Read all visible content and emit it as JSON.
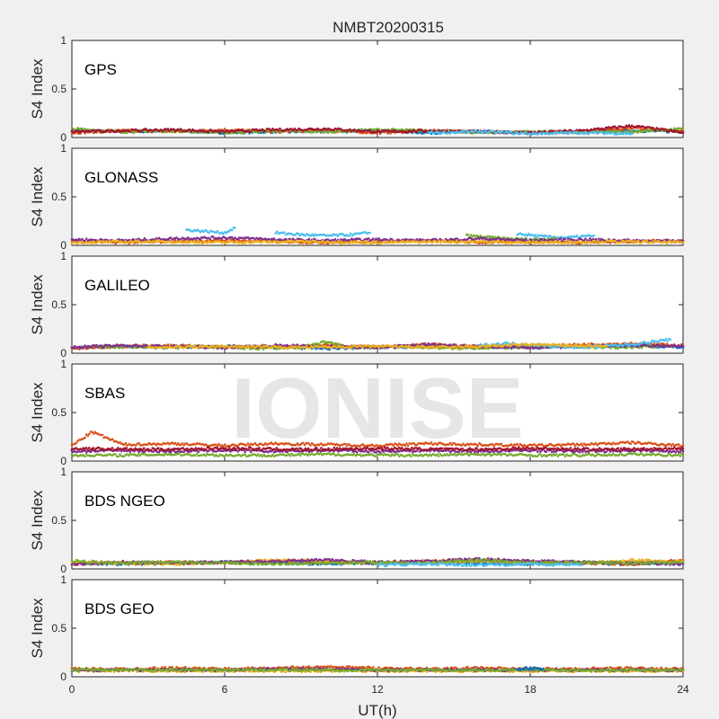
{
  "chart_data": {
    "type": "scatter",
    "title": "NMBT20200315",
    "xlabel": "UT(h)",
    "ylabel": "S4 Index",
    "xlim": [
      0,
      24
    ],
    "ylim": [
      0,
      1
    ],
    "xticks": [
      "0",
      "6",
      "12",
      "18",
      "24"
    ],
    "yticks": [
      "0",
      "0.5",
      "1"
    ],
    "grid": false,
    "watermark": "IONISE",
    "colors": [
      "#0072BD",
      "#D95319",
      "#EDB120",
      "#7E2F8E",
      "#77AC30",
      "#4DBEEE",
      "#A2142F"
    ],
    "panels": [
      {
        "name": "GPS",
        "series": [
          {
            "color": "#0072BD",
            "x": [
              0,
              2,
              4,
              6,
              8,
              10,
              12,
              14,
              16,
              18,
              20,
              22,
              24
            ],
            "y": [
              0.07,
              0.06,
              0.07,
              0.05,
              0.06,
              0.06,
              0.07,
              0.05,
              0.06,
              0.05,
              0.06,
              0.07,
              0.06
            ]
          },
          {
            "color": "#D95319",
            "x": [
              0,
              2,
              4,
              6,
              8,
              10,
              12,
              14,
              16,
              18,
              20,
              22,
              24
            ],
            "y": [
              0.05,
              0.07,
              0.06,
              0.08,
              0.06,
              0.07,
              0.05,
              0.07,
              0.06,
              0.05,
              0.06,
              0.1,
              0.06
            ]
          },
          {
            "color": "#77AC30",
            "x": [
              0,
              2,
              4,
              6,
              8,
              10,
              12,
              14,
              16,
              18,
              20,
              22,
              24
            ],
            "y": [
              0.09,
              0.06,
              0.07,
              0.05,
              0.07,
              0.06,
              0.08,
              0.07,
              0.05,
              0.06,
              0.05,
              0.06,
              0.09
            ]
          },
          {
            "color": "#A2142F",
            "x": [
              0,
              2,
              4,
              6,
              8,
              10,
              12,
              14,
              16,
              18,
              20,
              22,
              24
            ],
            "y": [
              0.06,
              0.07,
              0.08,
              0.06,
              0.08,
              0.09,
              0.06,
              0.07,
              0.06,
              0.05,
              0.07,
              0.12,
              0.05
            ]
          },
          {
            "color": "#4DBEEE",
            "x": [
              14,
              16,
              18,
              20,
              22
            ],
            "y": [
              0.05,
              0.06,
              0.04,
              0.05,
              0.04
            ]
          }
        ]
      },
      {
        "name": "GLONASS",
        "series": [
          {
            "color": "#D95319",
            "x": [
              0,
              2,
              4,
              6,
              8,
              10,
              12,
              14,
              16,
              18,
              20,
              22,
              24
            ],
            "y": [
              0.04,
              0.03,
              0.04,
              0.05,
              0.04,
              0.03,
              0.04,
              0.05,
              0.03,
              0.04,
              0.03,
              0.04,
              0.05
            ]
          },
          {
            "color": "#4DBEEE",
            "x": [
              4.5,
              5,
              5.5,
              6,
              6.4
            ],
            "y": [
              0.16,
              0.15,
              0.14,
              0.13,
              0.18
            ]
          },
          {
            "color": "#4DBEEE",
            "x": [
              8,
              9,
              10,
              11,
              11.7
            ],
            "y": [
              0.13,
              0.11,
              0.1,
              0.11,
              0.13
            ]
          },
          {
            "color": "#4DBEEE",
            "x": [
              17.5,
              18.5,
              19.5,
              20.5
            ],
            "y": [
              0.12,
              0.09,
              0.08,
              0.1
            ]
          },
          {
            "color": "#77AC30",
            "x": [
              15.5,
              16,
              17,
              18,
              19
            ],
            "y": [
              0.1,
              0.09,
              0.07,
              0.06,
              0.07
            ]
          },
          {
            "color": "#7E2F8E",
            "x": [
              0,
              2,
              4,
              6,
              8,
              10,
              12,
              14,
              16,
              18,
              20,
              22,
              24
            ],
            "y": [
              0.06,
              0.05,
              0.07,
              0.08,
              0.06,
              0.05,
              0.06,
              0.05,
              0.07,
              0.05,
              0.06,
              0.05,
              0.04
            ]
          },
          {
            "color": "#EDB120",
            "x": [
              0,
              3,
              6,
              9,
              12,
              15,
              18,
              21,
              24
            ],
            "y": [
              0.03,
              0.04,
              0.03,
              0.04,
              0.03,
              0.04,
              0.03,
              0.04,
              0.03
            ]
          }
        ]
      },
      {
        "name": "GALILEO",
        "series": [
          {
            "color": "#0072BD",
            "x": [
              0,
              2,
              4,
              6,
              8,
              10,
              12,
              14,
              16,
              18,
              20,
              22,
              24
            ],
            "y": [
              0.06,
              0.07,
              0.06,
              0.07,
              0.06,
              0.05,
              0.06,
              0.07,
              0.06,
              0.06,
              0.07,
              0.08,
              0.06
            ]
          },
          {
            "color": "#D95319",
            "x": [
              0,
              2,
              4,
              6,
              8,
              10,
              12,
              14,
              16,
              18,
              20,
              22,
              24
            ],
            "y": [
              0.05,
              0.07,
              0.08,
              0.06,
              0.07,
              0.08,
              0.06,
              0.09,
              0.07,
              0.06,
              0.09,
              0.1,
              0.08
            ]
          },
          {
            "color": "#77AC30",
            "x": [
              1,
              3,
              5,
              7,
              9,
              10,
              11,
              13,
              15,
              17,
              19,
              21,
              23
            ],
            "y": [
              0.07,
              0.06,
              0.07,
              0.05,
              0.06,
              0.12,
              0.06,
              0.07,
              0.05,
              0.06,
              0.07,
              0.06,
              0.07
            ]
          },
          {
            "color": "#7E2F8E",
            "x": [
              0,
              2,
              4,
              6,
              8,
              10,
              12,
              14,
              16,
              18,
              20,
              22,
              24
            ],
            "y": [
              0.06,
              0.08,
              0.07,
              0.06,
              0.08,
              0.07,
              0.06,
              0.09,
              0.07,
              0.06,
              0.07,
              0.08,
              0.07
            ]
          },
          {
            "color": "#4DBEEE",
            "x": [
              16,
              17,
              18,
              19,
              20,
              22,
              23.5
            ],
            "y": [
              0.08,
              0.1,
              0.09,
              0.07,
              0.06,
              0.09,
              0.14
            ]
          },
          {
            "color": "#EDB120",
            "x": [
              3,
              6,
              9,
              12,
              15,
              18,
              21
            ],
            "y": [
              0.06,
              0.07,
              0.06,
              0.07,
              0.06,
              0.09,
              0.07
            ]
          }
        ]
      },
      {
        "name": "SBAS",
        "series": [
          {
            "color": "#D95319",
            "x": [
              0,
              0.8,
              2,
              4,
              6,
              8,
              10,
              12,
              14,
              16,
              18,
              20,
              22,
              24
            ],
            "y": [
              0.16,
              0.3,
              0.17,
              0.18,
              0.16,
              0.18,
              0.17,
              0.16,
              0.18,
              0.17,
              0.16,
              0.17,
              0.19,
              0.16
            ]
          },
          {
            "color": "#7E2F8E",
            "x": [
              0,
              2,
              4,
              6,
              8,
              10,
              12,
              14,
              16,
              18,
              20,
              22,
              24
            ],
            "y": [
              0.1,
              0.11,
              0.1,
              0.11,
              0.1,
              0.11,
              0.1,
              0.11,
              0.1,
              0.11,
              0.1,
              0.11,
              0.1
            ]
          },
          {
            "color": "#77AC30",
            "x": [
              0,
              2,
              4,
              6,
              8,
              10,
              12,
              14,
              16,
              18,
              20,
              22,
              24
            ],
            "y": [
              0.06,
              0.06,
              0.07,
              0.06,
              0.06,
              0.07,
              0.06,
              0.06,
              0.07,
              0.06,
              0.06,
              0.07,
              0.06
            ]
          },
          {
            "color": "#A2142F",
            "x": [
              0,
              3,
              6,
              9,
              12,
              15,
              18,
              21,
              24
            ],
            "y": [
              0.13,
              0.12,
              0.13,
              0.12,
              0.13,
              0.12,
              0.13,
              0.12,
              0.13
            ]
          }
        ]
      },
      {
        "name": "BDS NGEO",
        "series": [
          {
            "color": "#0072BD",
            "x": [
              0,
              2,
              4,
              6,
              8,
              10,
              12,
              14,
              16,
              18,
              20,
              22,
              24
            ],
            "y": [
              0.06,
              0.05,
              0.06,
              0.07,
              0.06,
              0.05,
              0.06,
              0.07,
              0.06,
              0.05,
              0.06,
              0.05,
              0.06
            ]
          },
          {
            "color": "#D95319",
            "x": [
              0,
              2,
              4,
              6,
              8,
              10,
              12,
              14,
              16,
              18,
              20,
              22,
              24
            ],
            "y": [
              0.05,
              0.06,
              0.07,
              0.06,
              0.08,
              0.07,
              0.06,
              0.08,
              0.09,
              0.07,
              0.06,
              0.05,
              0.09
            ]
          },
          {
            "color": "#EDB120",
            "x": [
              0,
              2,
              4,
              6,
              8,
              10,
              12,
              14,
              16,
              18,
              20,
              22,
              24
            ],
            "y": [
              0.07,
              0.06,
              0.05,
              0.07,
              0.09,
              0.08,
              0.06,
              0.07,
              0.08,
              0.07,
              0.06,
              0.09,
              0.07
            ]
          },
          {
            "color": "#7E2F8E",
            "x": [
              0,
              2,
              4,
              6,
              8,
              10,
              12,
              14,
              16,
              18,
              20,
              22,
              24
            ],
            "y": [
              0.05,
              0.07,
              0.06,
              0.07,
              0.08,
              0.09,
              0.07,
              0.08,
              0.1,
              0.08,
              0.07,
              0.06,
              0.05
            ]
          },
          {
            "color": "#77AC30",
            "x": [
              0,
              2,
              4,
              6,
              8,
              10,
              12,
              14,
              16,
              18,
              20,
              22,
              24
            ],
            "y": [
              0.08,
              0.06,
              0.07,
              0.06,
              0.05,
              0.06,
              0.07,
              0.06,
              0.09,
              0.06,
              0.07,
              0.06,
              0.07
            ]
          },
          {
            "color": "#4DBEEE",
            "x": [
              12,
              14,
              16,
              18,
              20
            ],
            "y": [
              0.04,
              0.05,
              0.04,
              0.05,
              0.04
            ]
          }
        ]
      },
      {
        "name": "BDS GEO",
        "series": [
          {
            "color": "#D95319",
            "x": [
              0,
              2,
              4,
              6,
              8,
              10,
              12,
              14,
              16,
              18,
              20,
              22,
              24
            ],
            "y": [
              0.08,
              0.08,
              0.09,
              0.08,
              0.09,
              0.1,
              0.09,
              0.08,
              0.09,
              0.08,
              0.08,
              0.09,
              0.08
            ]
          },
          {
            "color": "#EDB120",
            "x": [
              0,
              2,
              4,
              6,
              8,
              10,
              12,
              14,
              16,
              18,
              20,
              22,
              24
            ],
            "y": [
              0.06,
              0.06,
              0.06,
              0.06,
              0.06,
              0.06,
              0.06,
              0.06,
              0.06,
              0.06,
              0.06,
              0.06,
              0.06
            ]
          },
          {
            "color": "#7E2F8E",
            "x": [
              0,
              2,
              4,
              6,
              8,
              10,
              12,
              14,
              16,
              18,
              20,
              22,
              24
            ],
            "y": [
              0.07,
              0.07,
              0.07,
              0.07,
              0.08,
              0.08,
              0.07,
              0.07,
              0.07,
              0.07,
              0.07,
              0.07,
              0.07
            ]
          },
          {
            "color": "#77AC30",
            "x": [
              0,
              4,
              8,
              12,
              16,
              20,
              24
            ],
            "y": [
              0.07,
              0.07,
              0.07,
              0.07,
              0.07,
              0.07,
              0.07
            ]
          },
          {
            "color": "#0072BD",
            "x": [
              17.5,
              18,
              18.5
            ],
            "y": [
              0.08,
              0.09,
              0.08
            ]
          }
        ]
      }
    ]
  }
}
